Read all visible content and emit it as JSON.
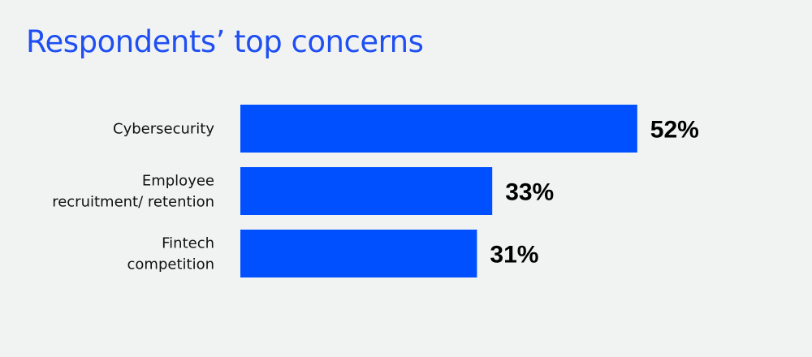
{
  "colors": {
    "background": "#f1f3f3",
    "title": "#1f4ff2",
    "bar": "#0050ff"
  },
  "chart_data": {
    "type": "bar",
    "orientation": "horizontal",
    "title": "Respondents’ top concerns",
    "categories": [
      [
        "Cybersecurity"
      ],
      [
        "Employee",
        "recruitment/ retention"
      ],
      [
        "Fintech",
        "competition"
      ]
    ],
    "values": [
      52,
      33,
      31
    ],
    "value_labels": [
      "52%",
      "33%",
      "31%"
    ],
    "unit": "%",
    "xlim": [
      0,
      100
    ],
    "grid": false,
    "legend": "none"
  }
}
